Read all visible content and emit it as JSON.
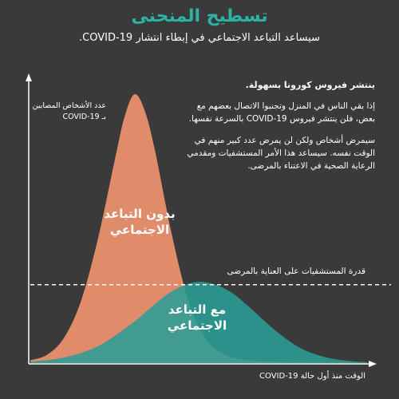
{
  "title": "تسطيح المنحنى",
  "subtitle": "سيساعد التباعد الاجتماعي في إبطاء انتشار COVID-19.",
  "info": {
    "heading": "ينتشر فيروس كورونا بسهولة.",
    "para1": "إذا بقي الناس في المنزل وتجنبوا الاتصال بعضهم مع بعض، فلن ينتشر فيروس COVID-19 بالسرعة نفسها.",
    "para2": "سيمرض أشخاص ولكن لن يمرض عدد كبير منهم في الوقت نفسه. سيساعد هذا الأمر المستشفيات ومقدمي الرعاية الصحية في الاعتناء بالمرضى."
  },
  "colors": {
    "background": "#3a3a3a",
    "without_distancing": "#e08c6a",
    "with_distancing": "#2a9d95",
    "title": "#2bb3a6"
  },
  "chart_data": {
    "type": "area",
    "ylabel": "عدد الأشخاص المصابين بـ COVID-19",
    "xlabel": "الوقت منذ أول حالة COVID-19",
    "xlim": [
      0,
      100
    ],
    "ylim": [
      0,
      100
    ],
    "capacity_line": {
      "label": "قدرة المستشفيات على العناية بالمرضى",
      "value": 28
    },
    "series": [
      {
        "name": "بدون التباعد الاجتماعي",
        "color": "#e08c6a",
        "peak_x": 31,
        "peak_y": 96,
        "x": [
          0,
          5,
          10,
          15,
          20,
          25,
          28,
          31,
          34,
          37,
          42,
          47,
          52,
          57,
          62,
          67,
          72,
          80,
          90,
          100
        ],
        "values": [
          1,
          3,
          9,
          22,
          44,
          72,
          88,
          96,
          90,
          76,
          46,
          22,
          9,
          3.5,
          1.5,
          0.8,
          0.5,
          0.3,
          0.2,
          0.1
        ]
      },
      {
        "name": "مع التباعد الاجتماعي",
        "color": "#2a9d95",
        "peak_x": 50,
        "peak_y": 29,
        "x": [
          0,
          10,
          20,
          30,
          35,
          40,
          45,
          50,
          55,
          60,
          65,
          70,
          75,
          80,
          85,
          90,
          95,
          100
        ],
        "values": [
          0.5,
          2,
          6,
          14,
          19,
          24,
          27.5,
          29,
          28,
          25,
          20,
          14.5,
          9.5,
          5.5,
          3,
          1.5,
          0.7,
          0.3
        ]
      }
    ]
  }
}
